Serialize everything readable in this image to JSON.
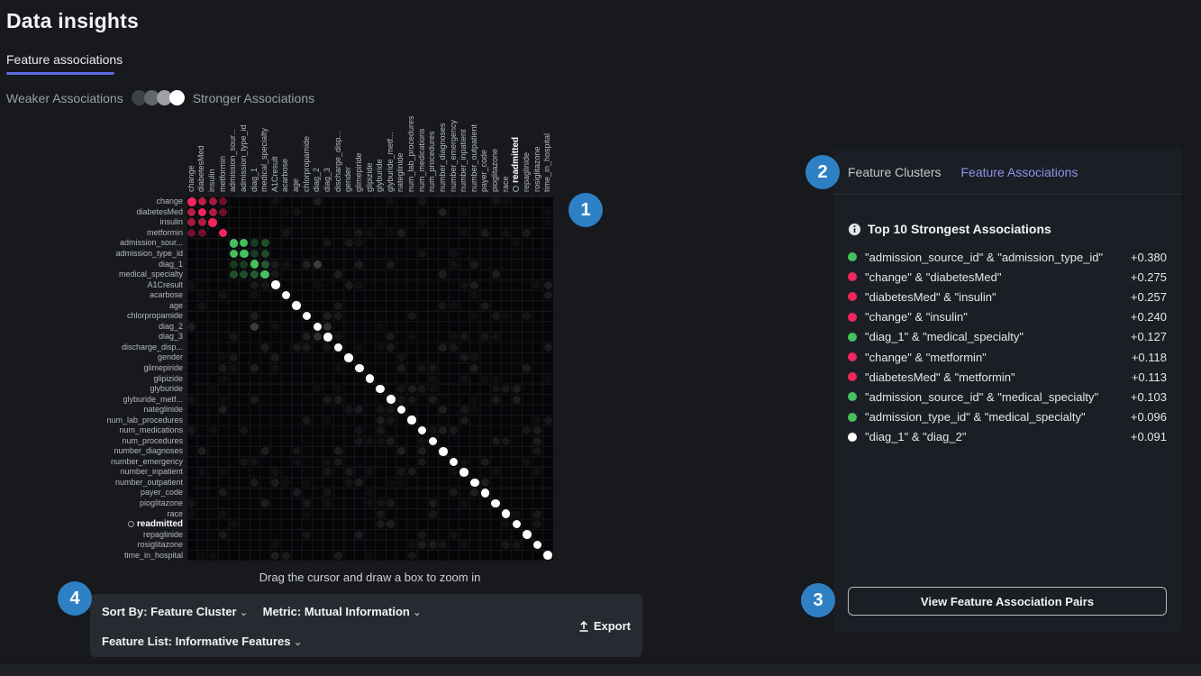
{
  "page": {
    "title": "Data insights",
    "tab": "Feature associations"
  },
  "legend": {
    "weaker": "Weaker Associations",
    "stronger": "Stronger Associations",
    "dot_colors": [
      "#3d4046",
      "#63676d",
      "#9ea1a6",
      "#ffffff"
    ]
  },
  "colors": {
    "red": "#f1265c",
    "green": "#46c15f",
    "white": "#ffffff",
    "accent_blue": "#2e80c4",
    "tab_underline": "#5c6bdf",
    "link_purple": "#8d93e8"
  },
  "annotations": [
    "1",
    "2",
    "3",
    "4"
  ],
  "chart_data": {
    "type": "heatmap",
    "title": "Feature associations dot matrix",
    "hint": "Drag the cursor and draw a box to zoom in",
    "features": [
      "change",
      "diabetesMed",
      "insulin",
      "metformin",
      "admission_sour...",
      "admission_type_id",
      "diag_1",
      "medical_specialty",
      "A1Cresult",
      "acarbose",
      "age",
      "chlorpropamide",
      "diag_2",
      "diag_3",
      "discharge_disp...",
      "gender",
      "glimepiride",
      "glipizide",
      "glyburide",
      "glyburide_metf...",
      "nateglinide",
      "num_lab_procedures",
      "num_medications",
      "num_procedures",
      "number_diagnoses",
      "number_emergency",
      "number_inpatient",
      "number_outpatient",
      "payer_code",
      "pioglitazone",
      "race",
      "readmitted",
      "repaglinide",
      "rosiglitazone",
      "time_in_hospital"
    ],
    "target_feature": "readmitted",
    "diagonal_groups": [
      {
        "from": 0,
        "to": 3,
        "color": "#f1265c"
      },
      {
        "from": 4,
        "to": 7,
        "color": "#46c15f"
      },
      {
        "from": 8,
        "to": 34,
        "color": "#ffffff"
      }
    ],
    "pairs": [
      {
        "a": 4,
        "b": 5,
        "value": 0.38,
        "color": "#46c15f"
      },
      {
        "a": 0,
        "b": 1,
        "value": 0.275,
        "color": "#f1265c"
      },
      {
        "a": 1,
        "b": 2,
        "value": 0.257,
        "color": "#f1265c"
      },
      {
        "a": 0,
        "b": 2,
        "value": 0.24,
        "color": "#f1265c"
      },
      {
        "a": 6,
        "b": 7,
        "value": 0.127,
        "color": "#46c15f"
      },
      {
        "a": 0,
        "b": 3,
        "value": 0.118,
        "color": "#f1265c"
      },
      {
        "a": 1,
        "b": 3,
        "value": 0.113,
        "color": "#f1265c"
      },
      {
        "a": 4,
        "b": 7,
        "value": 0.103,
        "color": "#46c15f"
      },
      {
        "a": 5,
        "b": 7,
        "value": 0.096,
        "color": "#46c15f"
      },
      {
        "a": 6,
        "b": 12,
        "value": 0.091,
        "color": "#ffffff"
      },
      {
        "a": 4,
        "b": 6,
        "value": 0.05,
        "color": "#46c15f"
      },
      {
        "a": 5,
        "b": 6,
        "value": 0.05,
        "color": "#46c15f"
      },
      {
        "a": 12,
        "b": 13,
        "value": 0.05,
        "color": "#ffffff"
      }
    ],
    "background_noise": {
      "density": 0.2,
      "max_opacity": 0.1
    }
  },
  "panel": {
    "tabs": [
      {
        "label": "Feature Clusters",
        "active": false
      },
      {
        "label": "Feature Associations",
        "active": true
      }
    ],
    "heading": "Top 10 Strongest Associations",
    "associations": [
      {
        "pair": "\"admission_source_id\" & \"admission_type_id\"",
        "value": "+0.380",
        "color": "#46c15f"
      },
      {
        "pair": "\"change\" & \"diabetesMed\"",
        "value": "+0.275",
        "color": "#f1265c"
      },
      {
        "pair": "\"diabetesMed\" & \"insulin\"",
        "value": "+0.257",
        "color": "#f1265c"
      },
      {
        "pair": "\"change\" & \"insulin\"",
        "value": "+0.240",
        "color": "#f1265c"
      },
      {
        "pair": "\"diag_1\" & \"medical_specialty\"",
        "value": "+0.127",
        "color": "#46c15f"
      },
      {
        "pair": "\"change\" & \"metformin\"",
        "value": "+0.118",
        "color": "#f1265c"
      },
      {
        "pair": "\"diabetesMed\" & \"metformin\"",
        "value": "+0.113",
        "color": "#f1265c"
      },
      {
        "pair": "\"admission_source_id\" & \"medical_specialty\"",
        "value": "+0.103",
        "color": "#46c15f"
      },
      {
        "pair": "\"admission_type_id\" & \"medical_specialty\"",
        "value": "+0.096",
        "color": "#46c15f"
      },
      {
        "pair": "\"diag_1\" & \"diag_2\"",
        "value": "+0.091",
        "color": "#ffffff"
      }
    ],
    "button": "View Feature Association Pairs"
  },
  "toolbar": {
    "sort_by": "Sort By: Feature Cluster",
    "metric": "Metric: Mutual Information",
    "feature_list": "Feature List: Informative Features",
    "export": "Export"
  }
}
